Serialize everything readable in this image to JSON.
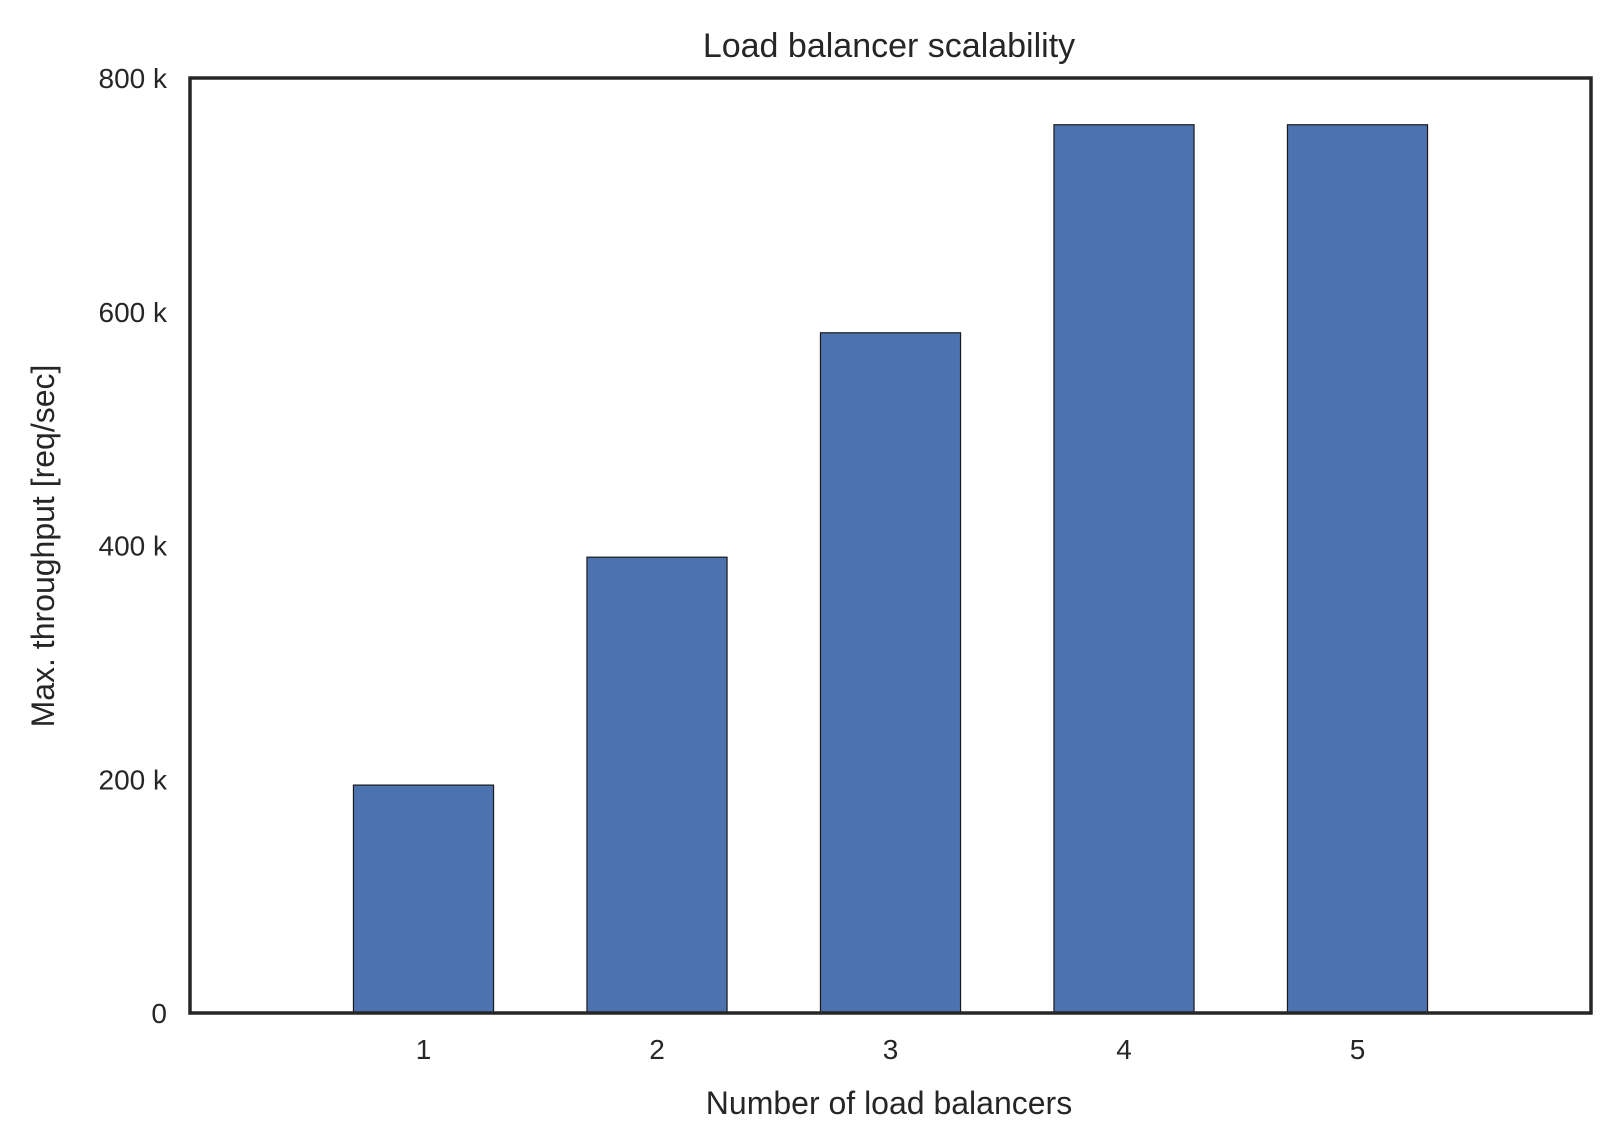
{
  "chart_data": {
    "type": "bar",
    "title": "Load balancer scalability",
    "xlabel": "Number of load balancers",
    "ylabel": "Max. throughput [req/sec]",
    "categories": [
      "1",
      "2",
      "3",
      "4",
      "5"
    ],
    "values": [
      195000,
      390000,
      582000,
      760000,
      760000
    ],
    "ylim": [
      0,
      800000
    ],
    "xlim": [
      0,
      6
    ],
    "yticks": [
      0,
      200000,
      400000,
      600000,
      800000
    ],
    "ytick_labels": [
      "0",
      "200 k",
      "400 k",
      "600 k",
      "800 k"
    ],
    "grid": false,
    "legend": "none",
    "bar_color": "#4C72B0"
  }
}
